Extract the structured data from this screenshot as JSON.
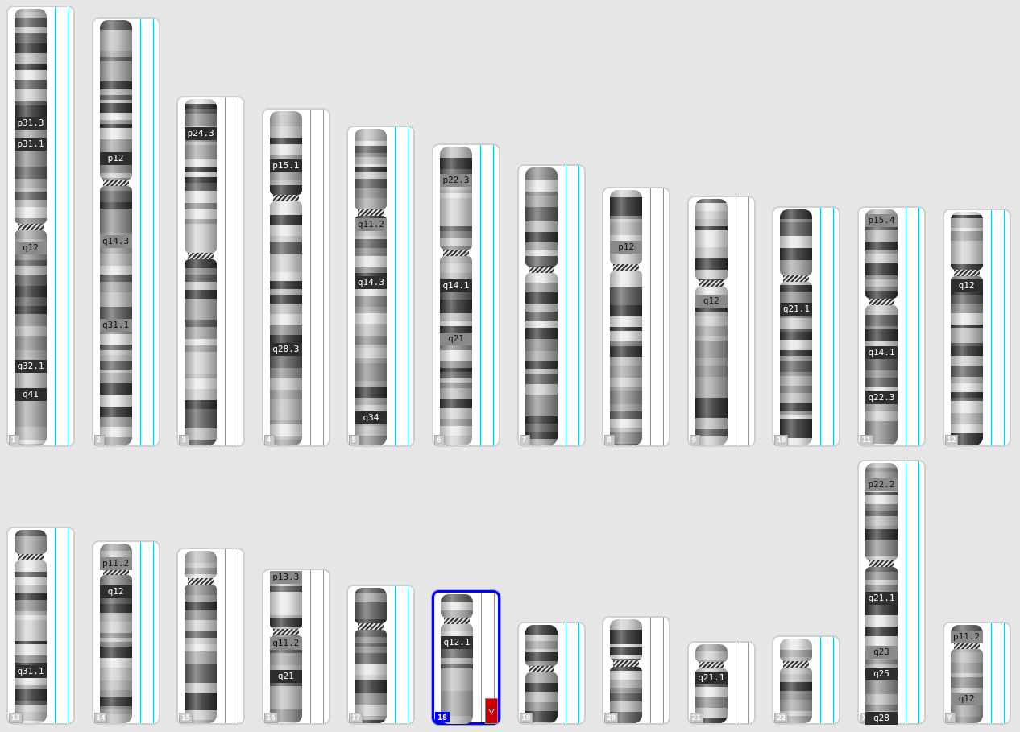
{
  "selected_chromosome": "18",
  "colors": {
    "selected_border": "#0000ff",
    "marker": "#c80000",
    "track_line": "#00c8ee"
  },
  "marker_icon": "down-triangle-icon",
  "marker_glyph": "▽",
  "chromosomes": [
    {
      "name": "1",
      "labels": [
        "p31.3",
        "p31.1",
        "q12",
        "q32.1",
        "q41"
      ]
    },
    {
      "name": "2",
      "labels": [
        "p12",
        "q14.3",
        "q31.1"
      ]
    },
    {
      "name": "3",
      "labels": [
        "p24.3"
      ]
    },
    {
      "name": "4",
      "labels": [
        "p15.1",
        "q28.3"
      ]
    },
    {
      "name": "5",
      "labels": [
        "q11.2",
        "q14.3",
        "q34"
      ]
    },
    {
      "name": "6",
      "labels": [
        "p22.3",
        "q14.1",
        "q21"
      ]
    },
    {
      "name": "7",
      "labels": []
    },
    {
      "name": "8",
      "labels": [
        "p12"
      ]
    },
    {
      "name": "9",
      "labels": [
        "q12"
      ]
    },
    {
      "name": "10",
      "labels": [
        "q21.1"
      ]
    },
    {
      "name": "11",
      "labels": [
        "p15.4",
        "q14.1",
        "q22.3"
      ]
    },
    {
      "name": "12",
      "labels": [
        "q12"
      ]
    },
    {
      "name": "13",
      "labels": [
        "q31.1"
      ]
    },
    {
      "name": "14",
      "labels": [
        "p11.2",
        "q12"
      ]
    },
    {
      "name": "15",
      "labels": []
    },
    {
      "name": "16",
      "labels": [
        "p13.3",
        "q11.2",
        "q21"
      ]
    },
    {
      "name": "17",
      "labels": []
    },
    {
      "name": "18",
      "labels": [
        "q12.1"
      ]
    },
    {
      "name": "19",
      "labels": []
    },
    {
      "name": "20",
      "labels": []
    },
    {
      "name": "21",
      "labels": [
        "q21.1"
      ]
    },
    {
      "name": "22",
      "labels": []
    },
    {
      "name": "X",
      "labels": [
        "p22.2",
        "q21.1",
        "q23",
        "q25",
        "q28"
      ]
    },
    {
      "name": "Y",
      "labels": [
        "p11.2",
        "q12"
      ]
    }
  ]
}
